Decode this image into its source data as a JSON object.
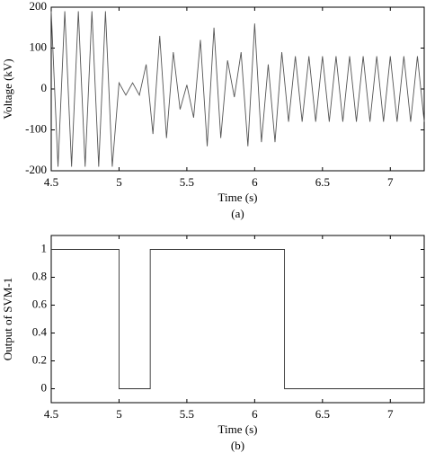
{
  "chart_data": [
    {
      "type": "line",
      "xlabel": "Time (s)",
      "ylabel": "Voltage (kV)",
      "caption": "(a)",
      "x": [
        4.5,
        4.55,
        4.6,
        4.65,
        4.7,
        4.75,
        4.8,
        4.85,
        4.9,
        4.95,
        5.0,
        5.05,
        5.1,
        5.15,
        5.2,
        5.25,
        5.3,
        5.35,
        5.4,
        5.45,
        5.5,
        5.55,
        5.6,
        5.65,
        5.7,
        5.75,
        5.8,
        5.85,
        5.9,
        5.95,
        6.0,
        6.05,
        6.1,
        6.15,
        6.2,
        6.25,
        6.3,
        6.35,
        6.4,
        6.45,
        6.5,
        6.55,
        6.6,
        6.65,
        6.7,
        6.75,
        6.8,
        6.85,
        6.9,
        6.95,
        7.0,
        7.05,
        7.1,
        7.15,
        7.2,
        7.25
      ],
      "series": [
        {
          "color": "#555555",
          "values": [
            190,
            -190,
            190,
            -190,
            190,
            -190,
            190,
            -190,
            190,
            -190,
            15,
            -15,
            15,
            -15,
            60,
            -110,
            130,
            -120,
            90,
            -50,
            10,
            -70,
            120,
            -140,
            150,
            -120,
            70,
            -20,
            90,
            -140,
            160,
            -130,
            60,
            -130,
            90,
            -80,
            80,
            -80,
            80,
            -80,
            80,
            -80,
            80,
            -80,
            80,
            -80,
            80,
            -80,
            80,
            -80,
            80,
            -80,
            80,
            -80,
            80,
            -80
          ]
        }
      ],
      "xlim": [
        4.5,
        7.25
      ],
      "xticks": [
        4.5,
        5,
        5.5,
        6,
        6.5,
        7
      ],
      "ylim": [
        -200,
        200
      ],
      "yticks": [
        -200,
        -100,
        0,
        100,
        200
      ]
    },
    {
      "type": "line",
      "xlabel": "Time (s)",
      "ylabel": "Output of SVM-1",
      "caption": "(b)",
      "x": [
        4.5,
        5.0,
        5.0,
        5.23,
        5.23,
        6.22,
        6.22,
        7.25
      ],
      "series": [
        {
          "color": "#333333",
          "values": [
            1,
            1,
            0,
            0,
            1,
            1,
            0,
            0
          ]
        }
      ],
      "xlim": [
        4.5,
        7.25
      ],
      "xticks": [
        4.5,
        5,
        5.5,
        6,
        6.5,
        7
      ],
      "ylim": [
        -0.1,
        1.1
      ],
      "yticks": [
        0,
        0.2,
        0.4,
        0.6,
        0.8,
        1
      ]
    }
  ]
}
